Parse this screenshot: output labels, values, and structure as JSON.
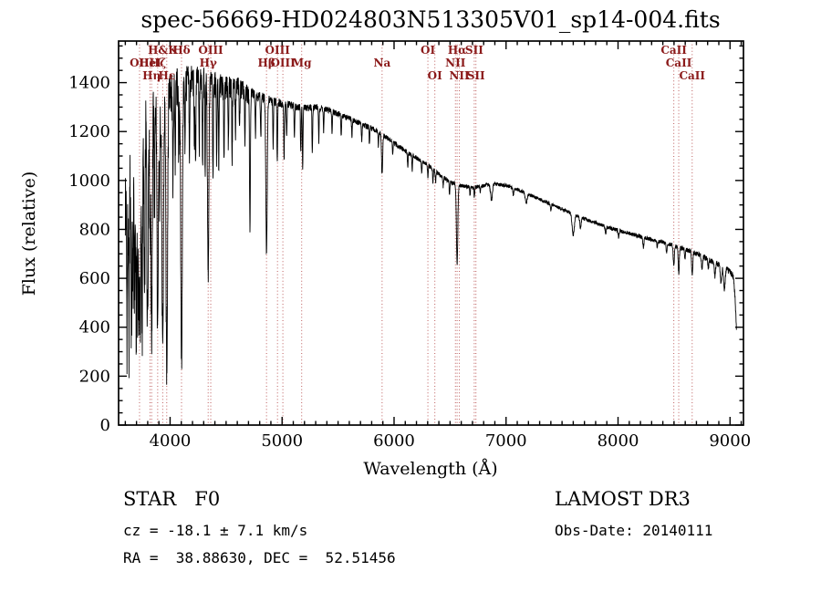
{
  "title": "spec-56669-HD024803N513305V01_sp14-004.fits",
  "annotations": {
    "class_line": "STAR   F0",
    "survey": "LAMOST DR3",
    "cz_line": "cz = -18.1 ± 7.1 km/s",
    "obs_date": "Obs-Date: 20140111",
    "radec_line": "RA =  38.88630, DEC =  52.51456"
  },
  "chart_data": {
    "type": "line",
    "title": "spec-56669-HD024803N513305V01_sp14-004.fits",
    "xlabel": "Wavelength (Å)",
    "ylabel": "Flux (relative)",
    "xlim": [
      3540,
      9120
    ],
    "ylim": [
      0,
      1570
    ],
    "x_major_ticks": [
      4000,
      5000,
      6000,
      7000,
      8000,
      9000
    ],
    "x_minor_step": 100,
    "y_major_ticks": [
      0,
      200,
      400,
      600,
      800,
      1000,
      1200,
      1400
    ],
    "y_minor_step": 50,
    "grid": false,
    "legend": "none",
    "line_color": "#000000",
    "marker_line_color": "#bd5c5c",
    "marker_label_color": "#8b1a1a",
    "spectral_markers": [
      {
        "wavelength": 3727,
        "label": "OII",
        "row": 2
      },
      {
        "wavelength": 3820,
        "label": "HeI",
        "row": 2
      },
      {
        "wavelength": 3835,
        "label": "Hη",
        "row": 3
      },
      {
        "wavelength": 3889,
        "label": "Hζ",
        "row": 2
      },
      {
        "wavelength": 3934,
        "label": "H&K",
        "row": 1
      },
      {
        "wavelength": 3970,
        "label": "Hε",
        "row": 3
      },
      {
        "wavelength": 4102,
        "label": "Hδ",
        "row": 1
      },
      {
        "wavelength": 4340,
        "label": "Hγ",
        "row": 2
      },
      {
        "wavelength": 4363,
        "label": "OIII",
        "row": 1
      },
      {
        "wavelength": 4861,
        "label": "Hβ",
        "row": 2
      },
      {
        "wavelength": 4959,
        "label": "OIII",
        "row": 1
      },
      {
        "wavelength": 5007,
        "label": "OIII",
        "row": 2
      },
      {
        "wavelength": 5175,
        "label": "Mg",
        "row": 2
      },
      {
        "wavelength": 5893,
        "label": "Na",
        "row": 2
      },
      {
        "wavelength": 6302,
        "label": "OI",
        "row": 1
      },
      {
        "wavelength": 6364,
        "label": "OI",
        "row": 3
      },
      {
        "wavelength": 6548,
        "label": "NII",
        "row": 2
      },
      {
        "wavelength": 6563,
        "label": "Hα",
        "row": 1
      },
      {
        "wavelength": 6583,
        "label": "NII",
        "row": 3
      },
      {
        "wavelength": 6716,
        "label": "SII",
        "row": 1
      },
      {
        "wavelength": 6731,
        "label": "SII",
        "row": 3
      },
      {
        "wavelength": 8498,
        "label": "CaII",
        "row": 1
      },
      {
        "wavelength": 8542,
        "label": "CaII",
        "row": 2
      },
      {
        "wavelength": 8662,
        "label": "CaII",
        "row": 3
      }
    ],
    "spectrum_model": {
      "x_start": 3600,
      "x_end": 9058,
      "x_step": 1.5,
      "min_flux": 120,
      "max_flux": 1562,
      "continuum": [
        [
          3600,
          950
        ],
        [
          3650,
          1080
        ],
        [
          3700,
          1230
        ],
        [
          3760,
          1300
        ],
        [
          3820,
          1335
        ],
        [
          3880,
          1360
        ],
        [
          3940,
          1382
        ],
        [
          4000,
          1400
        ],
        [
          4100,
          1415
        ],
        [
          4200,
          1430
        ],
        [
          4300,
          1425
        ],
        [
          4400,
          1412
        ],
        [
          4500,
          1396
        ],
        [
          4600,
          1400
        ],
        [
          4700,
          1362
        ],
        [
          4800,
          1342
        ],
        [
          4900,
          1326
        ],
        [
          5000,
          1316
        ],
        [
          5100,
          1306
        ],
        [
          5200,
          1296
        ],
        [
          5300,
          1301
        ],
        [
          5400,
          1291
        ],
        [
          5500,
          1273
        ],
        [
          5600,
          1253
        ],
        [
          5700,
          1233
        ],
        [
          5800,
          1213
        ],
        [
          5900,
          1186
        ],
        [
          6000,
          1153
        ],
        [
          6100,
          1121
        ],
        [
          6200,
          1093
        ],
        [
          6300,
          1063
        ],
        [
          6400,
          1026
        ],
        [
          6500,
          993
        ],
        [
          6600,
          979
        ],
        [
          6700,
          971
        ],
        [
          6800,
          979
        ],
        [
          6900,
          986
        ],
        [
          7000,
          979
        ],
        [
          7100,
          963
        ],
        [
          7200,
          943
        ],
        [
          7300,
          923
        ],
        [
          7400,
          903
        ],
        [
          7500,
          883
        ],
        [
          7600,
          863
        ],
        [
          7700,
          843
        ],
        [
          7800,
          826
        ],
        [
          7900,
          809
        ],
        [
          8000,
          796
        ],
        [
          8100,
          783
        ],
        [
          8200,
          771
        ],
        [
          8300,
          758
        ],
        [
          8400,
          748
        ],
        [
          8500,
          734
        ],
        [
          8600,
          719
        ],
        [
          8700,
          701
        ],
        [
          8800,
          679
        ],
        [
          8900,
          656
        ],
        [
          8950,
          643
        ],
        [
          9000,
          626
        ],
        [
          9030,
          608
        ],
        [
          9045,
          520
        ],
        [
          9058,
          390
        ]
      ],
      "absorption_lines": [
        [
          3615,
          520,
          4
        ],
        [
          3632,
          620,
          4
        ],
        [
          3655,
          650,
          5
        ],
        [
          3669,
          480,
          4
        ],
        [
          3683,
          560,
          4
        ],
        [
          3697,
          760,
          5
        ],
        [
          3712,
          690,
          5
        ],
        [
          3723,
          640,
          4
        ],
        [
          3734,
          780,
          5
        ],
        [
          3750,
          830,
          5
        ],
        [
          3771,
          790,
          5
        ],
        [
          3798,
          840,
          6
        ],
        [
          3820,
          480,
          4
        ],
        [
          3835,
          930,
          6
        ],
        [
          3860,
          430,
          4
        ],
        [
          3889,
          990,
          6
        ],
        [
          3906,
          380,
          4
        ],
        [
          3934,
          1090,
          7
        ],
        [
          3970,
          1140,
          7
        ],
        [
          4026,
          390,
          4
        ],
        [
          4046,
          330,
          3
        ],
        [
          4077,
          340,
          3
        ],
        [
          4102,
          1140,
          7
        ],
        [
          4132,
          290,
          3
        ],
        [
          4173,
          330,
          3
        ],
        [
          4216,
          280,
          3
        ],
        [
          4227,
          380,
          3
        ],
        [
          4260,
          290,
          3
        ],
        [
          4290,
          330,
          3
        ],
        [
          4313,
          380,
          3
        ],
        [
          4340,
          790,
          6
        ],
        [
          4383,
          430,
          3
        ],
        [
          4416,
          330,
          3
        ],
        [
          4435,
          340,
          3
        ],
        [
          4481,
          340,
          3
        ],
        [
          4520,
          240,
          3
        ],
        [
          4554,
          300,
          3
        ],
        [
          4584,
          240,
          3
        ],
        [
          4620,
          190,
          3
        ],
        [
          4668,
          240,
          3
        ],
        [
          4713,
          550,
          4
        ],
        [
          4762,
          160,
          3
        ],
        [
          4810,
          170,
          3
        ],
        [
          4861,
          645,
          6
        ],
        [
          4920,
          190,
          3
        ],
        [
          4957,
          240,
          3
        ],
        [
          5018,
          235,
          3
        ],
        [
          5041,
          140,
          3
        ],
        [
          5110,
          120,
          3
        ],
        [
          5167,
          190,
          3
        ],
        [
          5184,
          240,
          3
        ],
        [
          5270,
          190,
          3
        ],
        [
          5328,
          140,
          3
        ],
        [
          5371,
          100,
          3
        ],
        [
          5446,
          95,
          3
        ],
        [
          5528,
          95,
          3
        ],
        [
          5624,
          70,
          3
        ],
        [
          5711,
          75,
          3
        ],
        [
          5780,
          70,
          3
        ],
        [
          5860,
          60,
          3
        ],
        [
          5893,
          165,
          5
        ],
        [
          5988,
          50,
          3
        ],
        [
          6122,
          58,
          3
        ],
        [
          6162,
          65,
          3
        ],
        [
          6247,
          48,
          3
        ],
        [
          6302,
          55,
          3
        ],
        [
          6347,
          55,
          3
        ],
        [
          6371,
          45,
          3
        ],
        [
          6439,
          40,
          3
        ],
        [
          6495,
          55,
          3
        ],
        [
          6563,
          330,
          6
        ],
        [
          6678,
          35,
          3
        ],
        [
          6717,
          40,
          3
        ],
        [
          6770,
          30,
          3
        ],
        [
          6870,
          65,
          8
        ],
        [
          7065,
          30,
          4
        ],
        [
          7180,
          40,
          8
        ],
        [
          7400,
          25,
          4
        ],
        [
          7600,
          85,
          10
        ],
        [
          7665,
          45,
          6
        ],
        [
          7890,
          28,
          5
        ],
        [
          8005,
          25,
          4
        ],
        [
          8226,
          38,
          5
        ],
        [
          8350,
          28,
          4
        ],
        [
          8434,
          38,
          4
        ],
        [
          8498,
          85,
          5
        ],
        [
          8542,
          105,
          5
        ],
        [
          8598,
          40,
          4
        ],
        [
          8662,
          95,
          5
        ],
        [
          8750,
          55,
          5
        ],
        [
          8806,
          40,
          4
        ],
        [
          8865,
          55,
          5
        ],
        [
          8920,
          70,
          6
        ],
        [
          8950,
          90,
          7
        ]
      ],
      "noise_profile": [
        [
          3600,
          120
        ],
        [
          3750,
          100
        ],
        [
          3850,
          85
        ],
        [
          3950,
          70
        ],
        [
          4050,
          55
        ],
        [
          4200,
          42
        ],
        [
          4400,
          32
        ],
        [
          4600,
          26
        ],
        [
          4800,
          22
        ],
        [
          5000,
          17
        ],
        [
          5300,
          14
        ],
        [
          5600,
          12
        ],
        [
          6000,
          10
        ],
        [
          6500,
          8
        ],
        [
          7000,
          7
        ],
        [
          7500,
          7
        ],
        [
          8000,
          8
        ],
        [
          8400,
          9
        ],
        [
          8700,
          10
        ],
        [
          8900,
          12
        ],
        [
          9058,
          13
        ]
      ],
      "blue_noise_bias": {
        "below_wavelength": 4700,
        "negative_multiplier": 2.3
      }
    }
  }
}
